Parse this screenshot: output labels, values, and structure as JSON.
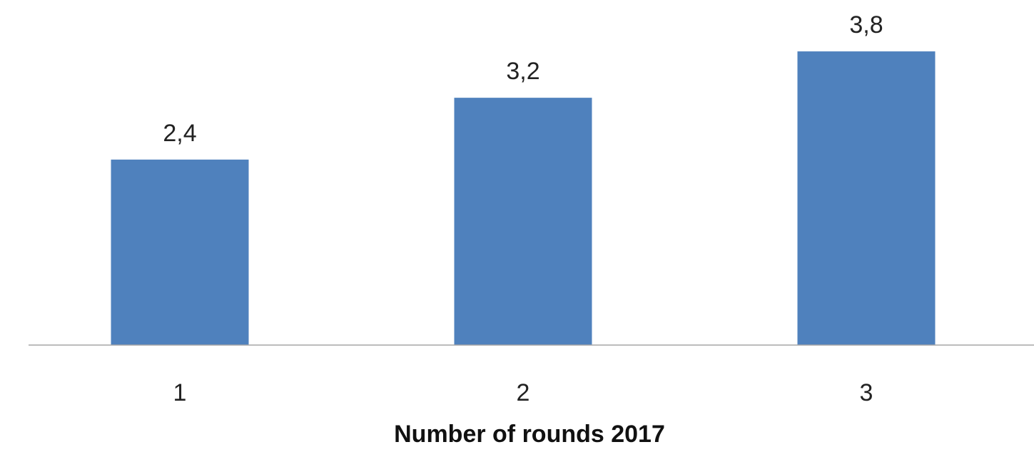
{
  "chart_data": {
    "type": "bar",
    "categories": [
      "1",
      "2",
      "3"
    ],
    "values": [
      2.4,
      3.2,
      3.8
    ],
    "value_labels": [
      "2,4",
      "3,2",
      "3,8"
    ],
    "title": "",
    "xlabel": "Number of rounds 2017",
    "ylabel": "",
    "ylim": [
      0,
      4.2
    ],
    "grid": false,
    "legend": "none",
    "bar_color": "#4F81BD",
    "axis_color": "#A6A6A6"
  }
}
